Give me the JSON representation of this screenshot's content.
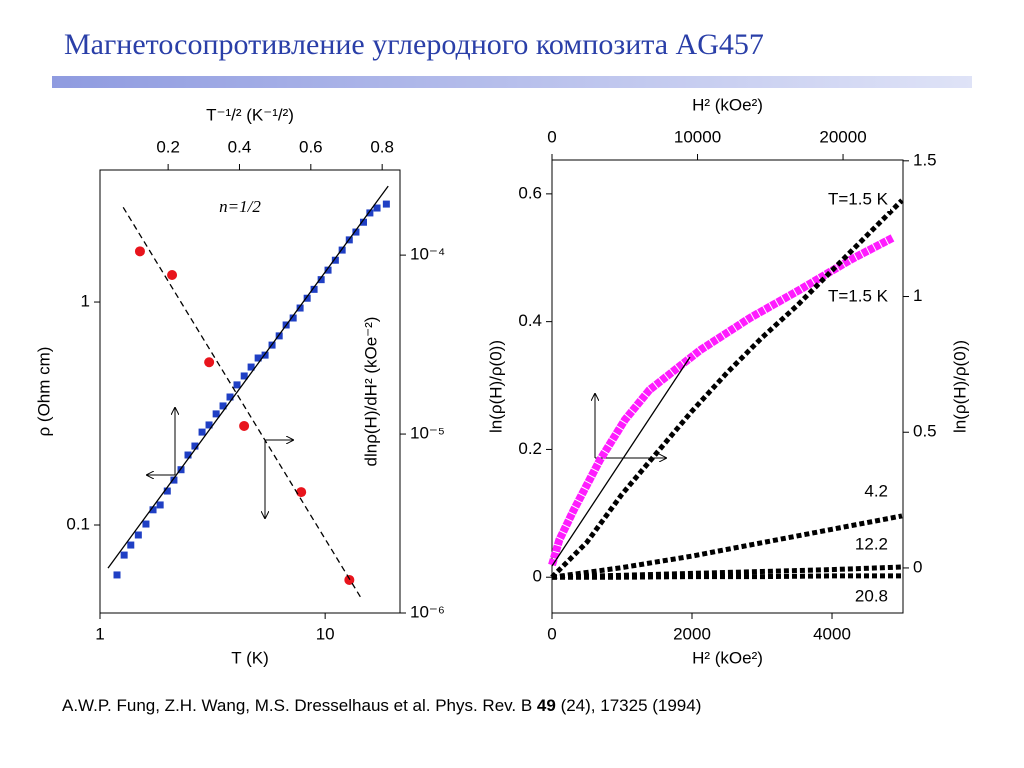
{
  "title": "Магнетосопротивление углеродного композита AG457",
  "citation": {
    "before": "A.W.P. Fung, Z.H. Wang, M.S. Dresselhaus et al. Phys. Rev. B ",
    "volume": "49",
    "after": " (24), 17325 (1994)"
  },
  "chart_data": [
    {
      "type": "scatter",
      "xlabel": "T (K)",
      "ylabel": "ρ (Ohm cm)",
      "x2label": "T⁻¹/² (K⁻¹/²)",
      "y2label": "dlnρ(H)/dH² (kOe⁻²)",
      "annotation": "n=1/2",
      "xlim": [
        1,
        21.5
      ],
      "xticks": [
        1,
        10
      ],
      "xlog": true,
      "ylim": [
        0.0403,
        3.91
      ],
      "yticks": [
        0.1,
        1
      ],
      "ylog": true,
      "x2lim": [
        0.009,
        0.85
      ],
      "x2ticks": [
        0.2,
        0.4,
        0.6,
        0.8
      ],
      "y2lim": [
        1e-06,
        0.000299
      ],
      "y2log": true,
      "y2ticks": [
        {
          "value": 0.0001,
          "label": "10⁻⁴"
        },
        {
          "value": 1e-05,
          "label": "10⁻⁵"
        },
        {
          "value": 1e-06,
          "label": "10⁻⁶"
        }
      ],
      "series": [
        {
          "color": "#1f3fc4",
          "marker": "square",
          "x": [
            1.19,
            1.28,
            1.37,
            1.48,
            1.6,
            1.72,
            1.85,
            1.99,
            2.13,
            2.29,
            2.46,
            2.64,
            2.84,
            3.05,
            3.28,
            3.52,
            3.78,
            4.06,
            4.37,
            4.69,
            5.04,
            5.41,
            5.81,
            6.25,
            6.71,
            7.21,
            7.74,
            8.32,
            8.93,
            9.6,
            10.3,
            11.1,
            11.9,
            12.8,
            13.7,
            14.8,
            15.8,
            17.0,
            18.7
          ],
          "values": [
            0.0597,
            0.0733,
            0.0813,
            0.0902,
            0.101,
            0.117,
            0.123,
            0.142,
            0.159,
            0.177,
            0.206,
            0.226,
            0.261,
            0.281,
            0.315,
            0.342,
            0.375,
            0.425,
            0.466,
            0.511,
            0.561,
            0.578,
            0.641,
            0.705,
            0.789,
            0.848,
            0.94,
            1.04,
            1.14,
            1.26,
            1.39,
            1.54,
            1.71,
            1.9,
            2.06,
            2.28,
            2.51,
            2.64,
            2.75
          ]
        },
        {
          "color": "#e8141c",
          "marker": "circle",
          "xaxis": "x2",
          "axis": "y2",
          "x": [
            0.121,
            0.211,
            0.315,
            0.413,
            0.573,
            0.708
          ],
          "values": [
            0.000105,
            7.74e-05,
            2.52e-05,
            1.11e-05,
            4.74e-06,
            1.53e-06
          ]
        },
        {
          "color": "#000000",
          "line": "solid",
          "x": [
            1.085,
            19.05
          ],
          "values": [
            0.0641,
            3.31
          ]
        },
        {
          "color": "#000000",
          "line": "dashed",
          "xaxis": "x2",
          "axis": "y2",
          "x": [
            0.074,
            0.739
          ],
          "values": [
            0.000185,
            1.23e-06
          ]
        }
      ]
    },
    {
      "type": "line",
      "xlabel": "H² (kOe²)",
      "ylabel": "ln(ρ(H)/ρ(0))",
      "x2label": "H² (kOe²)",
      "y2label": "ln(ρ(H)/ρ(0))",
      "xlim": [
        0,
        5014
      ],
      "xticks": [
        0,
        2000,
        4000
      ],
      "ylim": [
        -0.056,
        0.653
      ],
      "yticks": [
        0.0,
        0.2,
        0.4,
        0.6
      ],
      "x2lim": [
        0,
        24120
      ],
      "x2ticks": [
        0,
        10000,
        20000
      ],
      "y2lim": [
        -0.166,
        1.503
      ],
      "y2ticks": [
        0.0,
        0.5,
        1.0,
        1.5
      ],
      "series": [
        {
          "name": "T=1.5 K",
          "color": "#ff1cff",
          "line": "thick",
          "xaxis": "x2",
          "axis": "y2",
          "x": [
            0,
            500,
            1500,
            3300,
            5000,
            6700,
            10200,
            13600,
            17000,
            20500,
            23400
          ],
          "values": [
            0.011,
            0.103,
            0.214,
            0.398,
            0.545,
            0.656,
            0.803,
            0.921,
            1.024,
            1.135,
            1.216
          ]
        },
        {
          "name": "T=1.5 K",
          "color": "#000000",
          "line": "dense",
          "x": [
            0,
            500,
            1000,
            1500,
            2000,
            2500,
            3000,
            3500,
            4000,
            4500,
            5000
          ],
          "values": [
            0,
            0.055,
            0.13,
            0.195,
            0.26,
            0.32,
            0.375,
            0.425,
            0.48,
            0.535,
            0.59
          ]
        },
        {
          "name": "4.2",
          "color": "#000000",
          "line": "dense",
          "x": [
            0,
            1000,
            2000,
            3000,
            4000,
            5000
          ],
          "values": [
            0,
            0.015,
            0.033,
            0.054,
            0.075,
            0.096
          ]
        },
        {
          "name": "12.2",
          "color": "#000000",
          "line": "dense",
          "x": [
            0,
            1000,
            2000,
            3000,
            4000,
            5000
          ],
          "values": [
            0,
            0.003,
            0.006,
            0.009,
            0.012,
            0.016
          ]
        },
        {
          "name": "20.8",
          "color": "#000000",
          "line": "dense",
          "x": [
            0,
            1000,
            2000,
            3000,
            4000,
            5000
          ],
          "values": [
            0,
            0,
            0.001,
            0.001,
            0.002,
            0.002
          ]
        },
        {
          "color": "#000000",
          "line": "solid",
          "xaxis": "x2",
          "axis": "y2",
          "x": [
            0,
            9485
          ],
          "values": [
            0.007,
            0.777
          ]
        }
      ]
    }
  ]
}
